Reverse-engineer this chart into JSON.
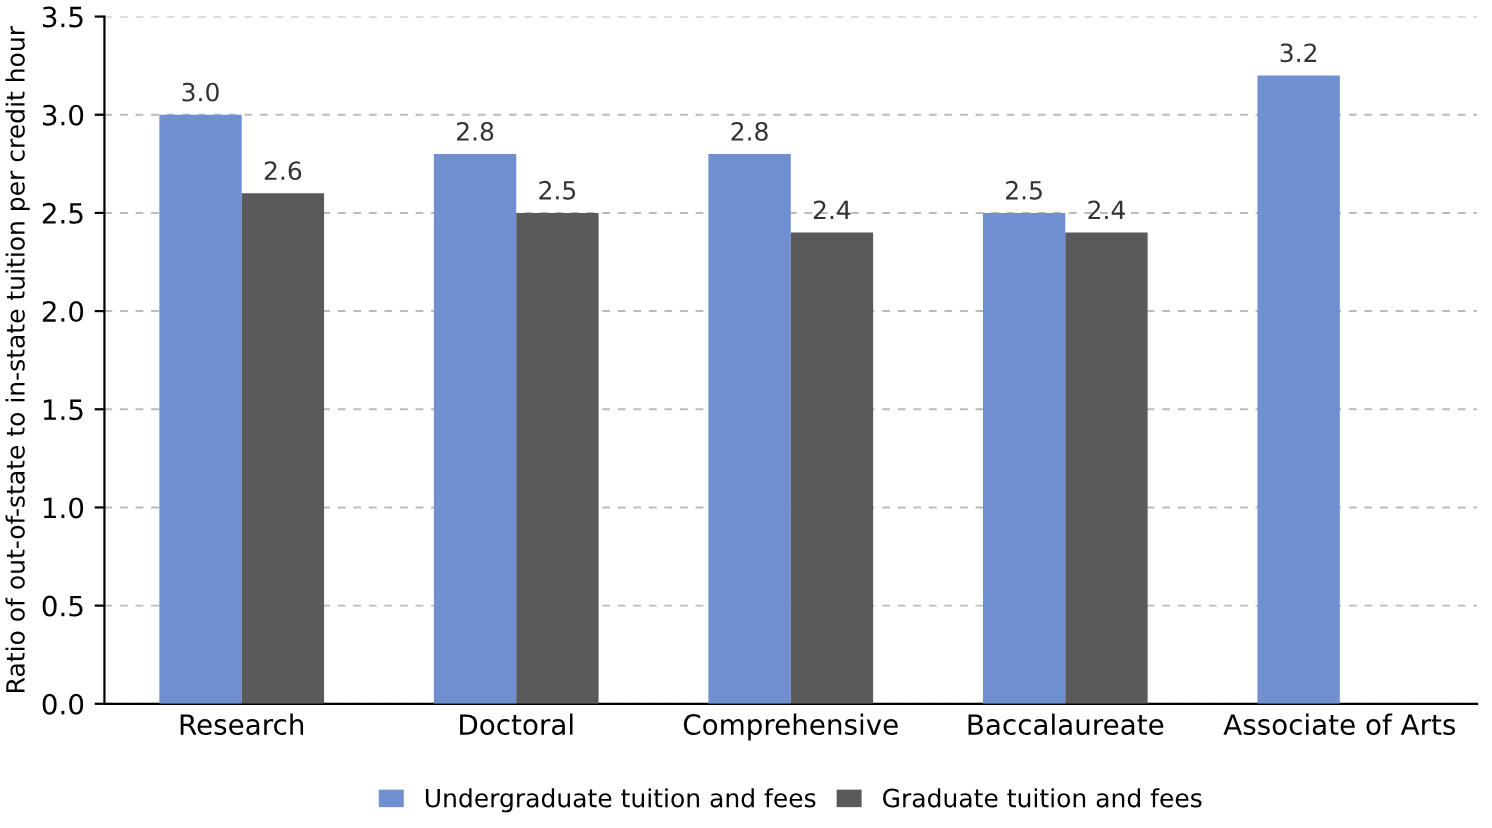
{
  "chart_data": {
    "type": "bar",
    "ylabel": "Ratio of out-of-state to in-state tuition per credit hour",
    "categories": [
      "Research",
      "Doctoral",
      "Comprehensive",
      "Baccalaureate",
      "Associate of Arts"
    ],
    "series": [
      {
        "name": "Undergraduate tuition and fees",
        "color": "#6f8fd0",
        "values": [
          3.0,
          2.8,
          2.8,
          2.5,
          3.2
        ],
        "value_labels": [
          "3.0",
          "2.8",
          "2.8",
          "2.5",
          "3.2"
        ]
      },
      {
        "name": "Graduate tuition and fees",
        "color": "#5a5a5a",
        "values": [
          2.6,
          2.5,
          2.4,
          2.4,
          null
        ],
        "value_labels": [
          "2.6",
          "2.5",
          "2.4",
          "2.4",
          null
        ]
      }
    ],
    "ylim": [
      0,
      3.5
    ],
    "yticks": [
      {
        "value": 0,
        "label": "0.0"
      },
      {
        "value": 0.5,
        "label": "0.5"
      },
      {
        "value": 1,
        "label": "1.0"
      },
      {
        "value": 1.5,
        "label": "1.5"
      },
      {
        "value": 2,
        "label": "2.0"
      },
      {
        "value": 2.5,
        "label": "2.5"
      },
      {
        "value": 3,
        "label": "3.0"
      },
      {
        "value": 3.5,
        "label": "3.5"
      }
    ],
    "grid": "y",
    "legend": "bottom"
  }
}
